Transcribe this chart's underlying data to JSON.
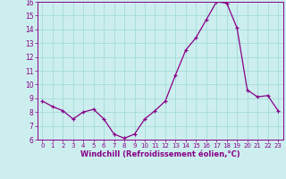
{
  "hours": [
    0,
    1,
    2,
    3,
    4,
    5,
    6,
    7,
    8,
    9,
    10,
    11,
    12,
    13,
    14,
    15,
    16,
    17,
    18,
    19,
    20,
    21,
    22,
    23
  ],
  "values": [
    8.8,
    8.4,
    8.1,
    7.5,
    8.0,
    8.2,
    7.5,
    6.4,
    6.1,
    6.4,
    7.5,
    8.1,
    8.8,
    10.7,
    12.5,
    13.4,
    14.7,
    16.0,
    15.9,
    14.1,
    9.6,
    9.1,
    9.2,
    8.1
  ],
  "line_color": "#880088",
  "marker": "+",
  "bg_color": "#cceeee",
  "grid_color": "#aadddd",
  "xlabel": "Windchill (Refroidissement éolien,°C)",
  "xlabel_color": "#880088",
  "tick_color": "#880088",
  "ylim": [
    6,
    16
  ],
  "yticks": [
    6,
    7,
    8,
    9,
    10,
    11,
    12,
    13,
    14,
    15,
    16
  ],
  "xticks": [
    0,
    1,
    2,
    3,
    4,
    5,
    6,
    7,
    8,
    9,
    10,
    11,
    12,
    13,
    14,
    15,
    16,
    17,
    18,
    19,
    20,
    21,
    22,
    23
  ]
}
